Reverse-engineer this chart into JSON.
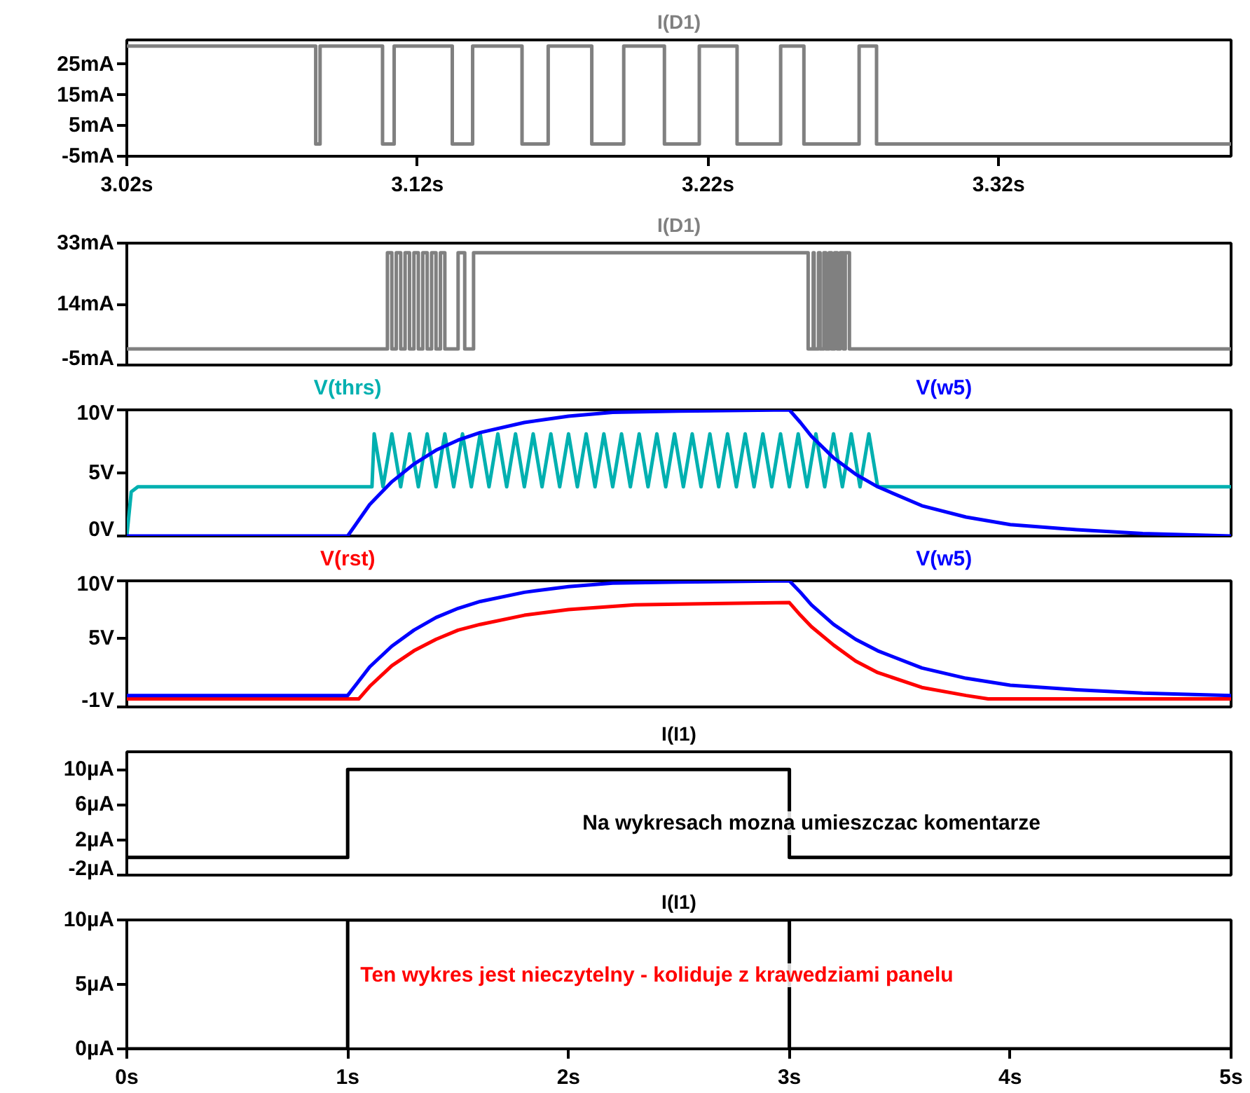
{
  "chart_data": [
    {
      "type": "line",
      "title": "I(D1)",
      "xlim": [
        3.02,
        3.4
      ],
      "xticks": [
        {
          "value": 3.02,
          "label": "3.02s"
        },
        {
          "value": 3.12,
          "label": "3.12s"
        },
        {
          "value": 3.22,
          "label": "3.22s"
        },
        {
          "value": 3.32,
          "label": "3.32s"
        }
      ],
      "ylim": [
        -5,
        33
      ],
      "yticks": [
        {
          "value": -5,
          "label": "-5mA"
        },
        {
          "value": 5,
          "label": "5mA"
        },
        {
          "value": 15,
          "label": "15mA"
        },
        {
          "value": 25,
          "label": "25mA"
        }
      ],
      "grid": false,
      "series": [
        {
          "color": "#808080",
          "x": [
            3.02,
            3.085,
            3.085,
            3.0865,
            3.0865,
            3.108,
            3.108,
            3.112,
            3.112,
            3.132,
            3.132,
            3.139,
            3.139,
            3.156,
            3.156,
            3.165,
            3.165,
            3.18,
            3.18,
            3.191,
            3.191,
            3.205,
            3.205,
            3.217,
            3.217,
            3.23,
            3.23,
            3.245,
            3.245,
            3.253,
            3.253,
            3.272,
            3.272,
            3.278,
            3.278,
            3.4
          ],
          "values": [
            31,
            31,
            -1,
            -1,
            31,
            31,
            -1,
            -1,
            31,
            31,
            -1,
            -1,
            31,
            31,
            -1,
            -1,
            31,
            31,
            -1,
            -1,
            31,
            31,
            -1,
            -1,
            31,
            31,
            -1,
            -1,
            31,
            31,
            -1,
            -1,
            31,
            31,
            -1,
            -1
          ]
        }
      ]
    },
    {
      "type": "line",
      "title": "I(D1)",
      "xlim": [
        0,
        5
      ],
      "ylim": [
        -5,
        33
      ],
      "yticks": [
        {
          "value": -5,
          "label": "-5mA"
        },
        {
          "value": 14,
          "label": "14mA"
        },
        {
          "value": 33,
          "label": "33mA"
        }
      ],
      "tick_labels": "y",
      "grid": false,
      "series": [
        {
          "color": "#808080",
          "x": [
            0,
            1.18,
            1.18,
            1.2,
            1.2,
            1.22,
            1.22,
            1.24,
            1.24,
            1.26,
            1.26,
            1.28,
            1.28,
            1.3,
            1.3,
            1.32,
            1.32,
            1.34,
            1.34,
            1.36,
            1.36,
            1.38,
            1.38,
            1.4,
            1.4,
            1.42,
            1.42,
            1.44,
            1.44,
            1.46,
            1.46,
            1.5,
            1.5,
            1.53,
            1.53,
            1.57,
            1.57,
            3.085,
            3.085,
            3.108,
            3.108,
            3.112,
            3.112,
            3.132,
            3.132,
            3.139,
            3.139,
            3.156,
            3.156,
            3.165,
            3.165,
            3.18,
            3.18,
            3.191,
            3.191,
            3.205,
            3.205,
            3.217,
            3.217,
            3.23,
            3.23,
            3.245,
            3.245,
            3.253,
            3.253,
            3.272,
            3.272,
            3.278,
            3.278,
            5
          ],
          "values": [
            0,
            0,
            30,
            30,
            0,
            0,
            30,
            30,
            0,
            0,
            30,
            30,
            0,
            0,
            30,
            30,
            0,
            0,
            30,
            30,
            0,
            0,
            30,
            30,
            0,
            0,
            30,
            30,
            0,
            0,
            0,
            0,
            30,
            30,
            0,
            0,
            30,
            30,
            0,
            0,
            30,
            30,
            0,
            0,
            30,
            30,
            0,
            0,
            30,
            30,
            0,
            0,
            30,
            30,
            0,
            0,
            30,
            30,
            0,
            0,
            30,
            30,
            0,
            0,
            30,
            30,
            0,
            0,
            0,
            0
          ]
        }
      ]
    },
    {
      "type": "line",
      "xlim": [
        0,
        5
      ],
      "ylim": [
        0,
        10
      ],
      "yticks": [
        {
          "value": 0,
          "label": "0V"
        },
        {
          "value": 5,
          "label": "5V"
        },
        {
          "value": 10,
          "label": "10V"
        }
      ],
      "tick_labels": "y",
      "grid": false,
      "series": [
        {
          "name": "V(thrs)",
          "color": "#00b0b0",
          "x": [
            0,
            0.02,
            0.05,
            1.11,
            1.12,
            1.16,
            1.2,
            1.24,
            1.28,
            1.32,
            1.36,
            1.4,
            1.44,
            1.48,
            1.52,
            1.56,
            1.6,
            1.64,
            1.68,
            1.72,
            1.76,
            1.8,
            1.84,
            1.88,
            1.92,
            1.96,
            2,
            2.04,
            2.08,
            2.12,
            2.16,
            2.2,
            2.24,
            2.28,
            2.32,
            2.36,
            2.4,
            2.44,
            2.48,
            2.52,
            2.56,
            2.6,
            2.64,
            2.68,
            2.72,
            2.76,
            2.8,
            2.84,
            2.88,
            2.92,
            2.96,
            3,
            3.04,
            3.08,
            3.12,
            3.16,
            3.2,
            3.24,
            3.28,
            3.32,
            3.36,
            3.4,
            5
          ],
          "values": [
            0,
            3.5,
            3.9,
            3.9,
            8.1,
            3.9,
            8.1,
            3.9,
            8.1,
            3.9,
            8.1,
            3.9,
            8.1,
            3.9,
            8.1,
            3.9,
            8.1,
            3.9,
            8.1,
            3.9,
            8.1,
            3.9,
            8.1,
            3.9,
            8.1,
            3.9,
            8.1,
            3.9,
            8.1,
            3.9,
            8.1,
            3.9,
            8.1,
            3.9,
            8.1,
            3.9,
            8.1,
            3.9,
            8.1,
            3.9,
            8.1,
            3.9,
            8.1,
            3.9,
            8.1,
            3.9,
            8.1,
            3.9,
            8.1,
            3.9,
            8.1,
            3.9,
            8.1,
            3.9,
            8.1,
            3.9,
            8.1,
            3.9,
            8.1,
            3.9,
            8.1,
            3.9,
            3.9
          ]
        },
        {
          "name": "V(w5)",
          "color": "#0000ff",
          "x": [
            0,
            1,
            1.1,
            1.2,
            1.3,
            1.4,
            1.5,
            1.6,
            1.8,
            2,
            2.2,
            2.5,
            3,
            3.05,
            3.1,
            3.2,
            3.3,
            3.4,
            3.6,
            3.8,
            4,
            4.3,
            4.6,
            5
          ],
          "values": [
            0,
            0,
            2.5,
            4.3,
            5.7,
            6.8,
            7.6,
            8.2,
            9,
            9.5,
            9.8,
            9.9,
            10,
            9,
            7.9,
            6.2,
            4.9,
            3.9,
            2.4,
            1.5,
            0.9,
            0.5,
            0.2,
            0
          ]
        }
      ]
    },
    {
      "type": "line",
      "xlim": [
        0,
        5
      ],
      "ylim": [
        -1,
        10
      ],
      "yticks": [
        {
          "value": -1,
          "label": "-1V"
        },
        {
          "value": 5,
          "label": "5V"
        },
        {
          "value": 10,
          "label": "10V"
        }
      ],
      "tick_labels": "y",
      "grid": false,
      "series": [
        {
          "name": "V(rst)",
          "color": "#ff0000",
          "x": [
            0,
            1.05,
            1.1,
            1.2,
            1.3,
            1.4,
            1.5,
            1.6,
            1.8,
            2,
            2.3,
            2.6,
            3,
            3.05,
            3.1,
            3.2,
            3.3,
            3.4,
            3.6,
            3.8,
            3.9,
            5
          ],
          "values": [
            -0.3,
            -0.3,
            0.8,
            2.6,
            3.9,
            4.9,
            5.7,
            6.2,
            7,
            7.5,
            7.9,
            8,
            8.1,
            7,
            6,
            4.4,
            3,
            2,
            0.7,
            0,
            -0.3,
            -0.3
          ]
        },
        {
          "name": "V(w5)",
          "color": "#0000ff",
          "x": [
            0,
            1,
            1.1,
            1.2,
            1.3,
            1.4,
            1.5,
            1.6,
            1.8,
            2,
            2.2,
            2.5,
            3,
            3.05,
            3.1,
            3.2,
            3.3,
            3.4,
            3.6,
            3.8,
            4,
            4.3,
            4.6,
            5
          ],
          "values": [
            0,
            0,
            2.5,
            4.3,
            5.7,
            6.8,
            7.6,
            8.2,
            9,
            9.5,
            9.8,
            9.9,
            10,
            9,
            7.9,
            6.2,
            4.9,
            3.9,
            2.4,
            1.5,
            0.9,
            0.5,
            0.2,
            0
          ]
        }
      ]
    },
    {
      "type": "line",
      "title": "I(I1)",
      "xlim": [
        0,
        5
      ],
      "ylim": [
        -2,
        12
      ],
      "yticks": [
        {
          "value": -2,
          "label": "-2µA"
        },
        {
          "value": 2,
          "label": "2µA"
        },
        {
          "value": 6,
          "label": "6µA"
        },
        {
          "value": 10,
          "label": "10µA"
        }
      ],
      "tick_labels": "y",
      "grid": false,
      "annotations": [
        "Na wykresach mozna umieszczac komentarze"
      ],
      "series": [
        {
          "color": "#000000",
          "x": [
            0,
            1,
            1,
            3,
            3,
            5
          ],
          "values": [
            0,
            0,
            10,
            10,
            0,
            0
          ]
        }
      ]
    },
    {
      "type": "line",
      "title": "I(I1)",
      "xlim": [
        0,
        5
      ],
      "xticks": [
        {
          "value": 0,
          "label": "0s"
        },
        {
          "value": 1,
          "label": "1s"
        },
        {
          "value": 2,
          "label": "2s"
        },
        {
          "value": 3,
          "label": "3s"
        },
        {
          "value": 4,
          "label": "4s"
        },
        {
          "value": 5,
          "label": "5s"
        }
      ],
      "ylim": [
        0,
        10
      ],
      "yticks": [
        {
          "value": 0,
          "label": "0µA"
        },
        {
          "value": 5,
          "label": "5µA"
        },
        {
          "value": 10,
          "label": "10µA"
        }
      ],
      "grid": false,
      "annotations": [
        "Ten wykres jest nieczytelny - koliduje z krawedziami panelu"
      ],
      "series": [
        {
          "color": "#000000",
          "x": [
            0,
            1,
            1,
            3,
            3,
            5
          ],
          "values": [
            0,
            0,
            10,
            10,
            0,
            0
          ]
        }
      ]
    }
  ]
}
